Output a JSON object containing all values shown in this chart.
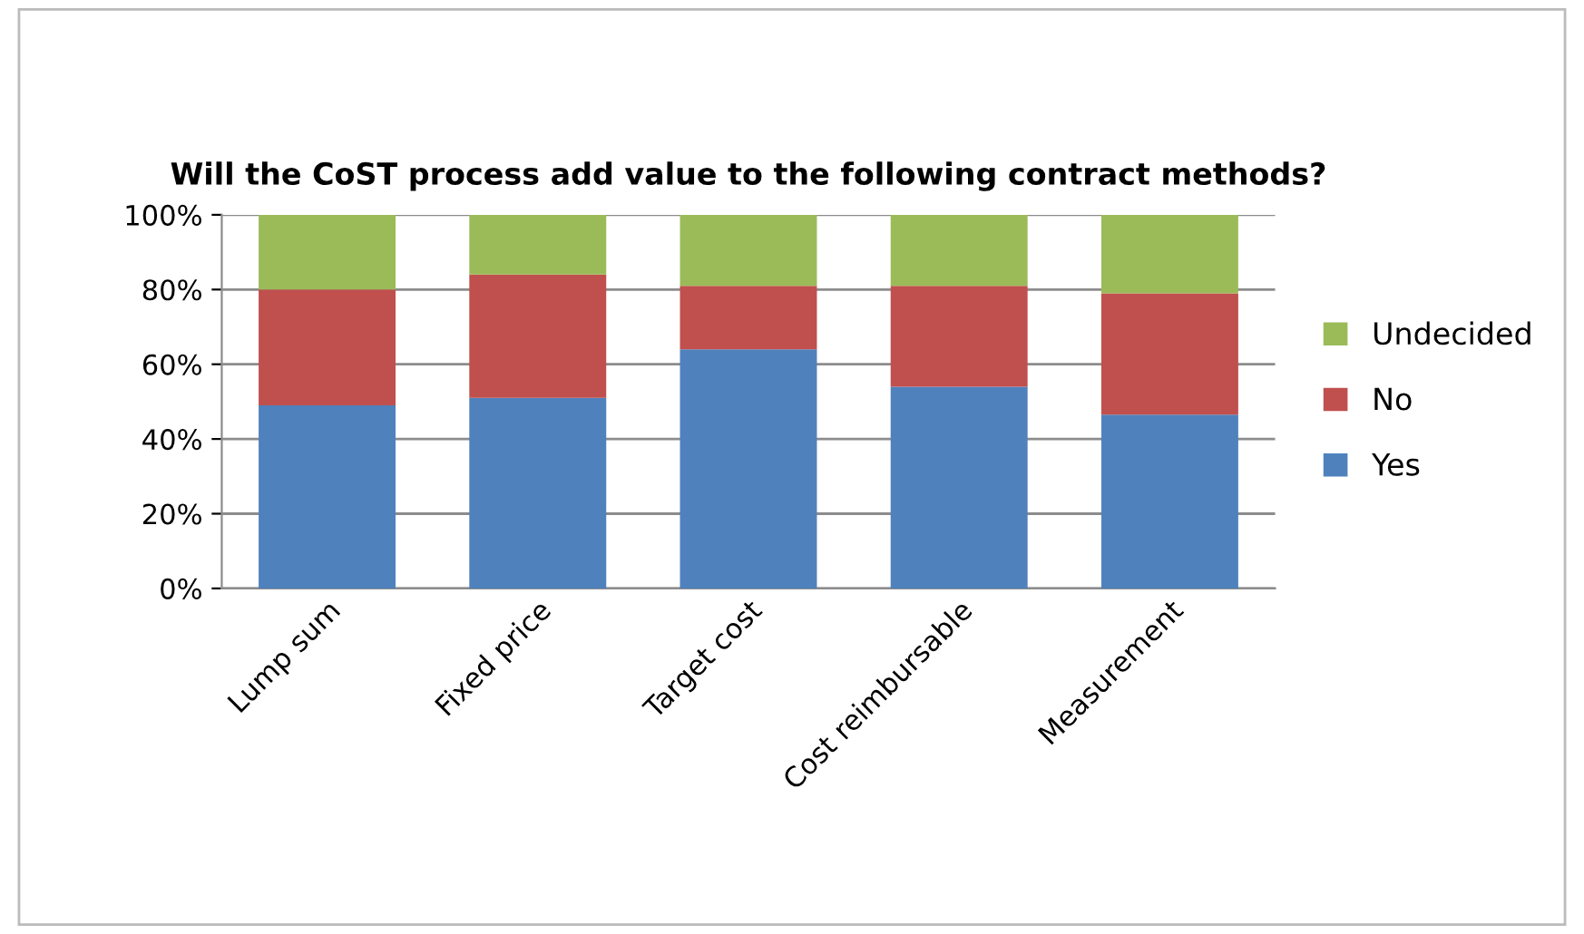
{
  "chart_data": {
    "type": "bar",
    "title": "Will the CoST process add value to the following contract methods?",
    "categories": [
      "Lump sum",
      "Fixed price",
      "Target cost",
      "Cost reimbursable",
      "Measurement"
    ],
    "stacked": true,
    "series": [
      {
        "name": "Yes",
        "color": "#4f81bd",
        "values": [
          49,
          51,
          64,
          54,
          46.5
        ]
      },
      {
        "name": "No",
        "color": "#c0504d",
        "values": [
          31,
          33,
          17,
          27,
          32.5
        ]
      },
      {
        "name": "Undecided",
        "color": "#9bbb59",
        "values": [
          20,
          16,
          19,
          19,
          21
        ]
      }
    ],
    "ylim": [
      0,
      100
    ],
    "yticks": [
      {
        "value": 0,
        "label": "0%"
      },
      {
        "value": 20,
        "label": "20%"
      },
      {
        "value": 40,
        "label": "40%"
      },
      {
        "value": 60,
        "label": "60%"
      },
      {
        "value": 80,
        "label": "80%"
      },
      {
        "value": 100,
        "label": "100%"
      }
    ],
    "grid": "y",
    "legend": "right"
  }
}
